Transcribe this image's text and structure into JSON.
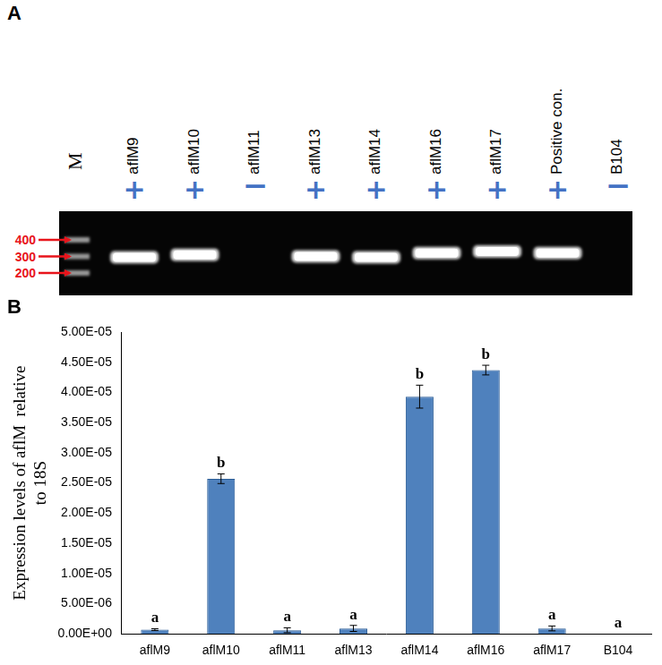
{
  "panels": [
    "A",
    "B"
  ],
  "gel": {
    "marker_lane": "M",
    "markers": [
      400,
      300,
      200
    ],
    "lanes": [
      {
        "label": "aflM9",
        "result": "+",
        "band_bp": 295
      },
      {
        "label": "aflM10",
        "result": "+",
        "band_bp": 310
      },
      {
        "label": "aflM11",
        "result": "−",
        "band_bp": null
      },
      {
        "label": "aflM13",
        "result": "+",
        "band_bp": 300
      },
      {
        "label": "aflM14",
        "result": "+",
        "band_bp": 295
      },
      {
        "label": "aflM16",
        "result": "+",
        "band_bp": 320
      },
      {
        "label": "aflM17",
        "result": "+",
        "band_bp": 330
      },
      {
        "label": "Positive con.",
        "result": "+",
        "band_bp": 320
      },
      {
        "label": "B104",
        "result": "−",
        "band_bp": null
      }
    ]
  },
  "chart_data": {
    "type": "bar",
    "categories": [
      "aflM9",
      "aflM10",
      "aflM11",
      "aflM13",
      "aflM14",
      "aflM16",
      "aflM17",
      "B104"
    ],
    "values": [
      7e-07,
      2.57e-05,
      6e-07,
      9e-07,
      3.93e-05,
      4.37e-05,
      9e-07,
      0
    ],
    "errors": [
      1.5e-07,
      8e-07,
      4e-07,
      5e-07,
      1.9e-06,
      8e-07,
      4e-07,
      0
    ],
    "letters": [
      "a",
      "b",
      "a",
      "a",
      "b",
      "b",
      "a",
      "a"
    ],
    "y_label": [
      "Expression levels of aflM  relative",
      "to 18S"
    ],
    "ylim": [
      0,
      5e-05
    ],
    "yticks": [
      {
        "value": 0,
        "label": "0.00E+00"
      },
      {
        "value": 5e-06,
        "label": "5.00E-06"
      },
      {
        "value": 1e-05,
        "label": "1.00E-05"
      },
      {
        "value": 1.5e-05,
        "label": "1.50E-05"
      },
      {
        "value": 2e-05,
        "label": "2.00E-05"
      },
      {
        "value": 2.5e-05,
        "label": "2.50E-05"
      },
      {
        "value": 3e-05,
        "label": "3.00E-05"
      },
      {
        "value": 3.5e-05,
        "label": "3.50E-05"
      },
      {
        "value": 4e-05,
        "label": "4.00E-05"
      },
      {
        "value": 4.5e-05,
        "label": "4.50E-05"
      },
      {
        "value": 5e-05,
        "label": "5.00E-05"
      }
    ],
    "color": "#4f81bd",
    "grid": false
  }
}
